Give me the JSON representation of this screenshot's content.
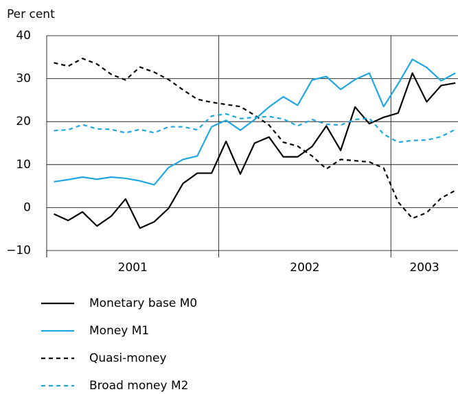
{
  "chart_data": {
    "type": "line",
    "y_label": "Per cent",
    "x": [
      2001.042,
      2001.125,
      2001.208,
      2001.292,
      2001.375,
      2001.458,
      2001.542,
      2001.625,
      2001.708,
      2001.792,
      2001.875,
      2001.958,
      2002.042,
      2002.125,
      2002.208,
      2002.292,
      2002.375,
      2002.458,
      2002.542,
      2002.625,
      2002.708,
      2002.792,
      2002.875,
      2002.958,
      2003.042,
      2003.125,
      2003.208,
      2003.292,
      2003.375
    ],
    "xlim": [
      2001,
      2003.39
    ],
    "xticks": [
      2001,
      2002,
      2003
    ],
    "ylim": [
      -10,
      40
    ],
    "yticks": [
      {
        "value": -10,
        "label": "−10"
      },
      0,
      10,
      20,
      30,
      40
    ],
    "grid": true,
    "series": [
      {
        "name": "Monetary base M0",
        "color": "#000000",
        "dashed": false,
        "values": [
          -1.5,
          -3,
          -1,
          -4.3,
          -2,
          2,
          -4.8,
          -3.3,
          -0.2,
          5.6,
          8,
          8,
          15.4,
          7.8,
          15,
          16.4,
          11.8,
          11.8,
          14.2,
          19,
          13.3,
          23.4,
          19.5,
          21,
          22,
          31.3,
          24.6,
          28.4,
          29
        ]
      },
      {
        "name": "Money M1",
        "color": "#1ea6e3",
        "dashed": false,
        "values": [
          6,
          6.5,
          7.1,
          6.6,
          7.1,
          6.8,
          6.2,
          5.3,
          9.3,
          11.2,
          12,
          18.8,
          20.3,
          18,
          20.5,
          23.4,
          25.8,
          23.8,
          29.7,
          30.5,
          27.5,
          29.8,
          31.3,
          23.5,
          28.8,
          34.5,
          32.6,
          29.5,
          31.3
        ]
      },
      {
        "name": "Quasi-money",
        "color": "#000000",
        "dashed": true,
        "values": [
          33.7,
          32.9,
          34.7,
          33.4,
          31,
          29.7,
          32.7,
          31.5,
          29.8,
          27.4,
          25.2,
          24.5,
          24,
          23.5,
          21.5,
          19.2,
          15.2,
          14.3,
          12,
          9,
          11.2,
          10.9,
          10.6,
          9.2,
          1.3,
          -2.5,
          -1.2,
          2.2,
          4
        ]
      },
      {
        "name": "Broad money M2",
        "color": "#1ea6e3",
        "dashed": true,
        "values": [
          17.9,
          18.1,
          19.3,
          18.3,
          18.2,
          17.4,
          18.2,
          17.4,
          18.8,
          18.8,
          18.1,
          21.3,
          21.8,
          20.7,
          21,
          21.2,
          20.6,
          19,
          20.5,
          19.4,
          19.2,
          20.5,
          20.8,
          17.1,
          15.2,
          15.6,
          15.7,
          16.5,
          18.2
        ]
      }
    ]
  }
}
